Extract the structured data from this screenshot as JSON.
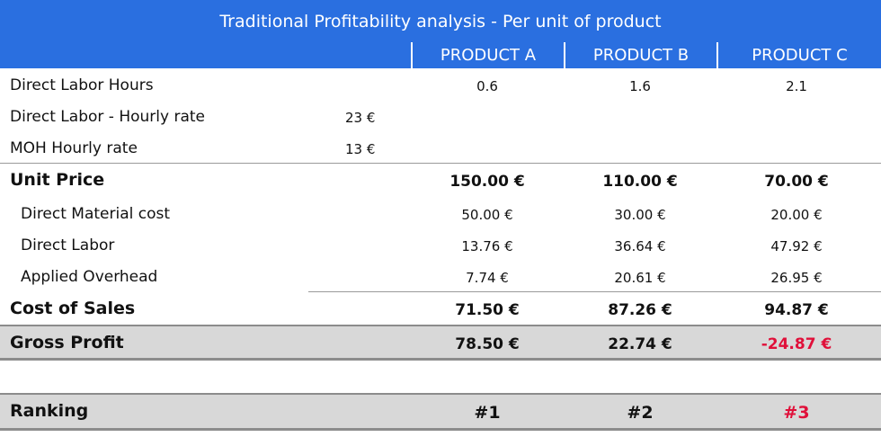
{
  "title": "Traditional Profitability analysis - Per unit of product",
  "headers": [
    "PRODUCT A",
    "PRODUCT B",
    "PRODUCT C"
  ],
  "direct_labor_hours": {
    "label": "Direct Labor Hours",
    "values": [
      "0.6",
      "1.6",
      "2.1"
    ]
  },
  "direct_labor_rate": {
    "label": "Direct Labor - Hourly rate",
    "value": "23 €"
  },
  "moh_rate": {
    "label": "MOH Hourly rate",
    "value": "13 €"
  },
  "unit_price": {
    "label": "Unit Price",
    "values": [
      "150.00 €",
      "110.00 €",
      "70.00 €"
    ]
  },
  "direct_material": {
    "label": "Direct Material cost",
    "values": [
      "50.00 €",
      "30.00 €",
      "20.00 €"
    ]
  },
  "direct_labor": {
    "label": "Direct Labor",
    "values": [
      "13.76 €",
      "36.64 €",
      "47.92 €"
    ]
  },
  "applied_overhead": {
    "label": "Applied Overhead",
    "values": [
      "7.74 €",
      "20.61 €",
      "26.95 €"
    ]
  },
  "cost_of_sales": {
    "label": "Cost of Sales",
    "values": [
      "71.50 €",
      "87.26 €",
      "94.87 €"
    ]
  },
  "gross_profit": {
    "label": "Gross Profit",
    "values": [
      "78.50 €",
      "22.74 €",
      "-24.87 €"
    ]
  },
  "ranking": {
    "label": "Ranking",
    "values": [
      "#1",
      "#2",
      "#3"
    ]
  },
  "colors": {
    "header_bg": "#2a6fe0",
    "negative": "#e0103a",
    "band_bg": "#d8d8d8"
  }
}
